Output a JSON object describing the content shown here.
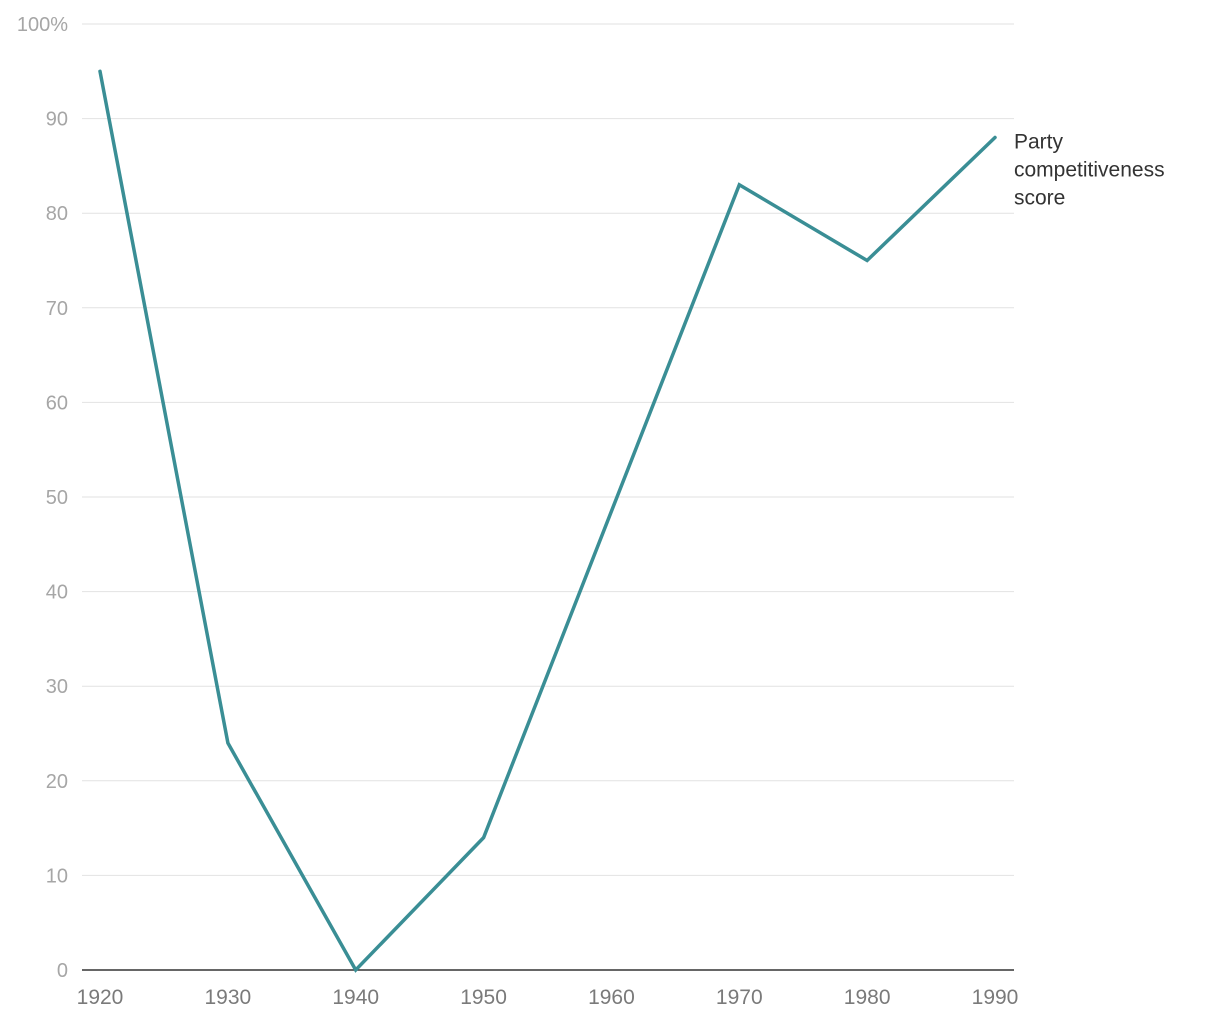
{
  "chart_data": {
    "type": "line",
    "title": "",
    "xlabel": "",
    "ylabel": "",
    "x": [
      1920,
      1930,
      1940,
      1950,
      1960,
      1970,
      1980,
      1990
    ],
    "x_tick_labels": [
      "1920",
      "1930",
      "1940",
      "1950",
      "1960",
      "1970",
      "1980",
      "1990"
    ],
    "y_ticks": [
      0,
      10,
      20,
      30,
      40,
      50,
      60,
      70,
      80,
      90,
      100
    ],
    "y_tick_labels": [
      "0",
      "10",
      "20",
      "30",
      "40",
      "50",
      "60",
      "70",
      "80",
      "90",
      "100%"
    ],
    "ylim": [
      0,
      100
    ],
    "xlim": [
      1920,
      1990
    ],
    "grid": true,
    "series": [
      {
        "name": "Party competitiveness score",
        "name_lines": [
          "Party",
          "competitiveness",
          "score"
        ],
        "color": "#3a8e95",
        "points": [
          {
            "x": 1920,
            "y": 95
          },
          {
            "x": 1930,
            "y": 24
          },
          {
            "x": 1940,
            "y": 0
          },
          {
            "x": 1950,
            "y": 14
          },
          {
            "x": 1970,
            "y": 83
          },
          {
            "x": 1980,
            "y": 75
          },
          {
            "x": 1990,
            "y": 88
          }
        ]
      }
    ],
    "legend_placement": "inline at line end (right)"
  }
}
